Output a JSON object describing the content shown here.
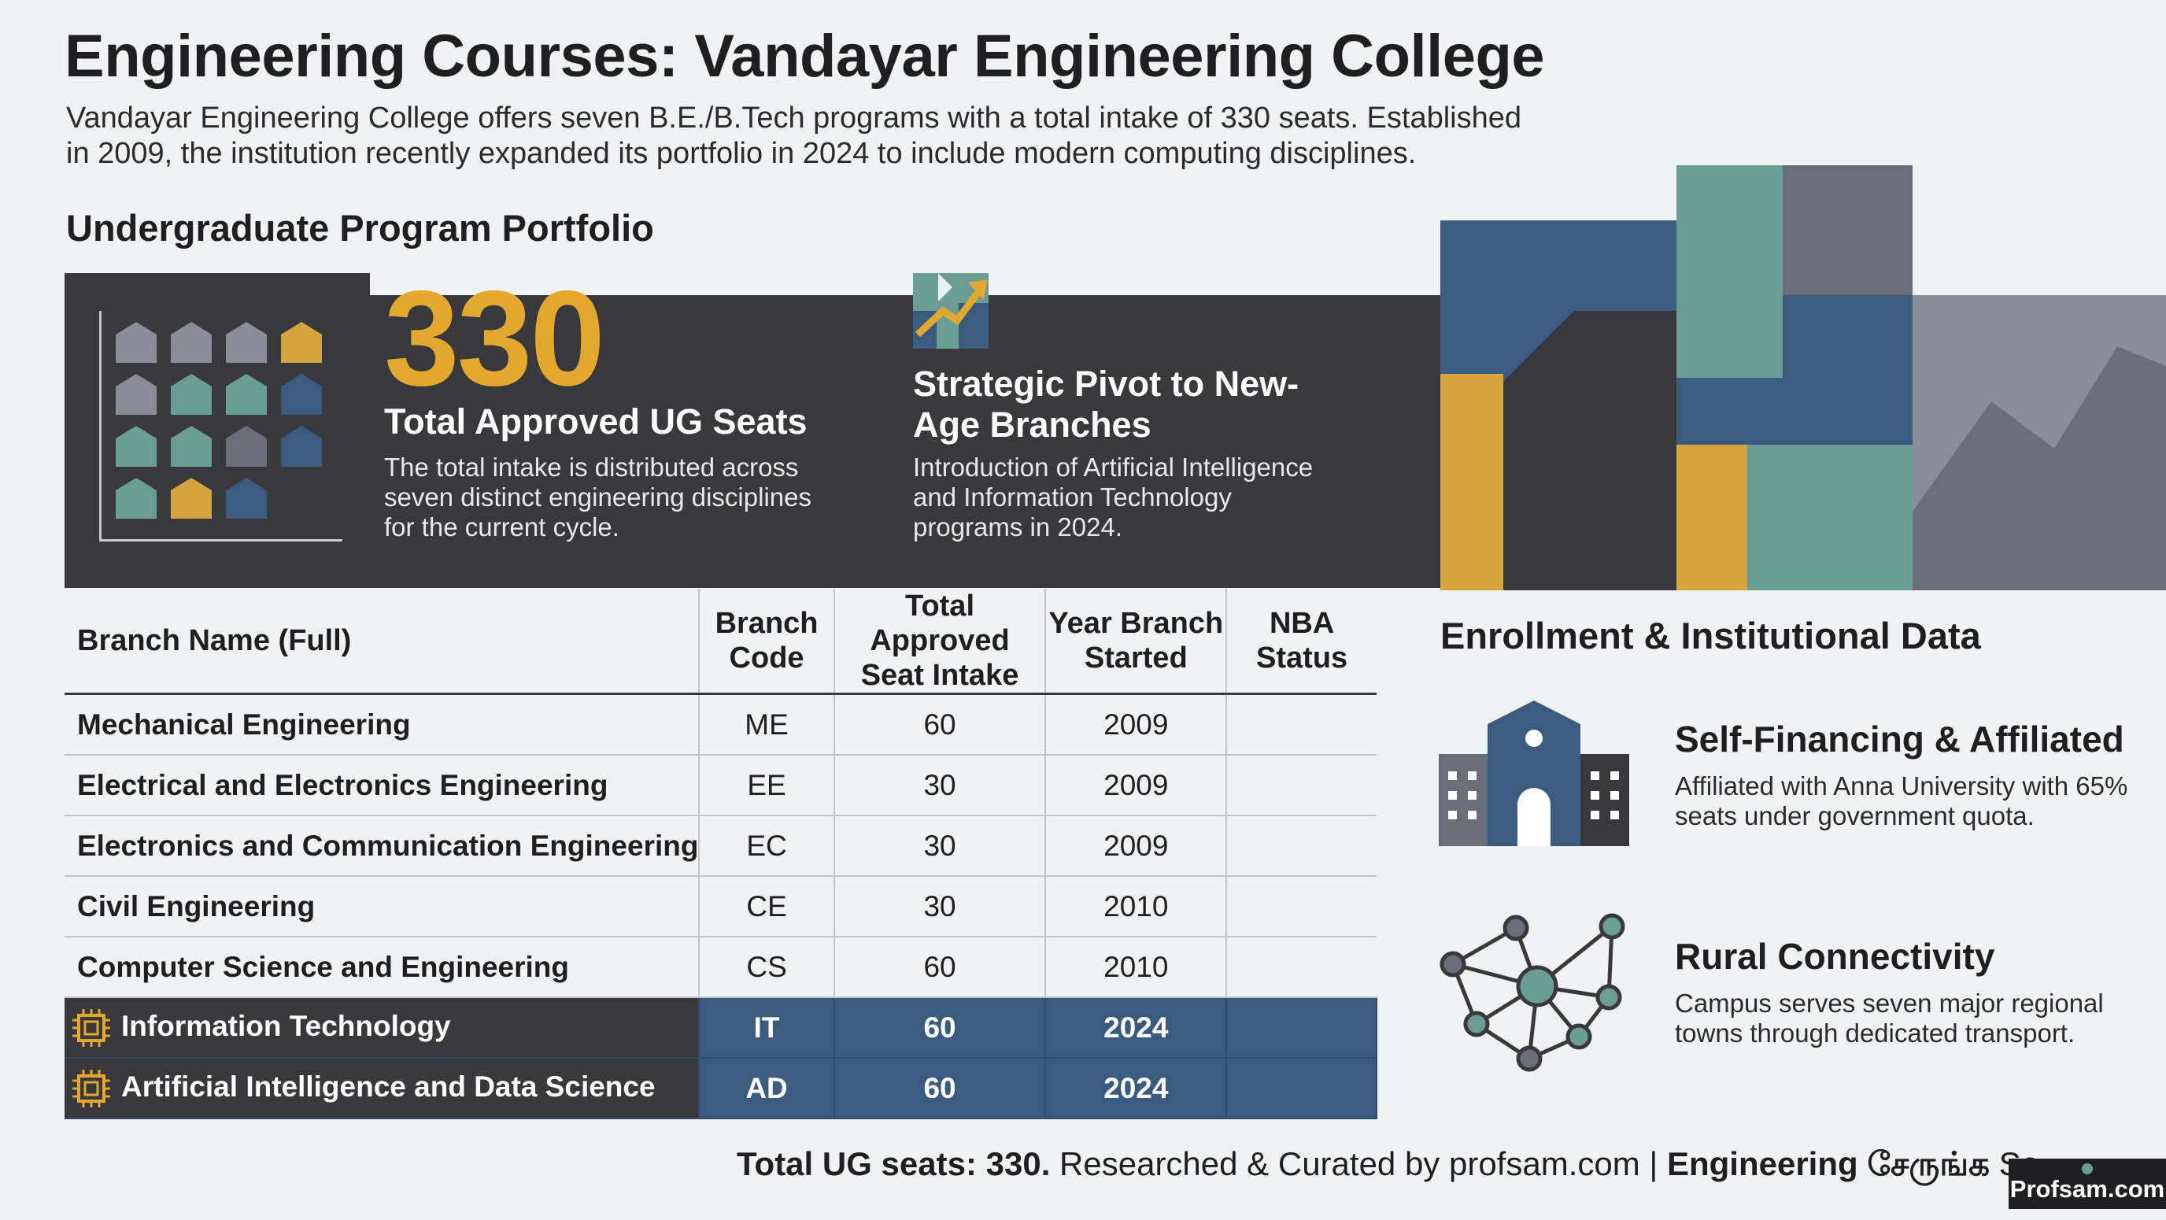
{
  "header": {
    "title": "Engineering Courses: Vandayar Engineering College",
    "intro": "Vandayar Engineering College offers seven B.E./B.Tech programs with a total intake of 330 seats. Established in 2009, the institution recently expanded its portfolio in 2024 to include modern computing disciplines."
  },
  "portfolio": {
    "heading": "Undergraduate Program Portfolio",
    "seats": {
      "number": "330",
      "label": "Total Approved UG Seats",
      "description": "The total intake is distributed across seven distinct engineering disciplines for the current cycle."
    },
    "pivot": {
      "title": "Strategic Pivot to New-Age Branches",
      "description": "Introduction of Artificial Intelligence and Information Technology programs in 2024."
    }
  },
  "table": {
    "headers": {
      "name": "Branch Name (Full)",
      "code": "Branch Code",
      "intake": "Total Approved Seat Intake",
      "year": "Year Branch Started",
      "nba": "NBA Status"
    },
    "rows": [
      {
        "name": "Mechanical Engineering",
        "code": "ME",
        "intake": "60",
        "year": "2009",
        "nba": ""
      },
      {
        "name": "Electrical and Electronics Engineering",
        "code": "EE",
        "intake": "30",
        "year": "2009",
        "nba": ""
      },
      {
        "name": "Electronics and Communication Engineering",
        "code": "EC",
        "intake": "30",
        "year": "2009",
        "nba": ""
      },
      {
        "name": "Civil Engineering",
        "code": "CE",
        "intake": "30",
        "year": "2010",
        "nba": ""
      },
      {
        "name": "Computer Science and Engineering",
        "code": "CS",
        "intake": "60",
        "year": "2010",
        "nba": ""
      },
      {
        "name": "Information Technology",
        "code": "IT",
        "intake": "60",
        "year": "2024",
        "nba": ""
      },
      {
        "name": "Artificial Intelligence and Data Science",
        "code": "AD",
        "intake": "60",
        "year": "2024",
        "nba": ""
      }
    ]
  },
  "enrollment": {
    "heading": "Enrollment & Institutional Data",
    "self_financing": {
      "title": "Self-Financing & Affiliated",
      "description": "Affiliated with Anna University with 65% seats under government quota."
    },
    "rural": {
      "title": "Rural Connectivity",
      "description": "Campus serves seven major regional towns through dedicated transport."
    }
  },
  "footer": {
    "bold_part": "Total UG seats: 330.",
    "regular_part": " Researched & Curated by profsam.com | ",
    "bold_part2": "Engineering சேருங்க",
    "tail": " Se",
    "watermark": "Profsam.com"
  },
  "colors": {
    "accent_gold": "#e3a92f",
    "highlight_blue": "#3a5b7e",
    "dark_band": "#38383d",
    "teal": "#6a9e94",
    "slate": "#6b6e78"
  },
  "icons": [
    "seat-grid-icon",
    "growth-arrow-icon",
    "chip-icon",
    "building-icon",
    "network-icon"
  ]
}
